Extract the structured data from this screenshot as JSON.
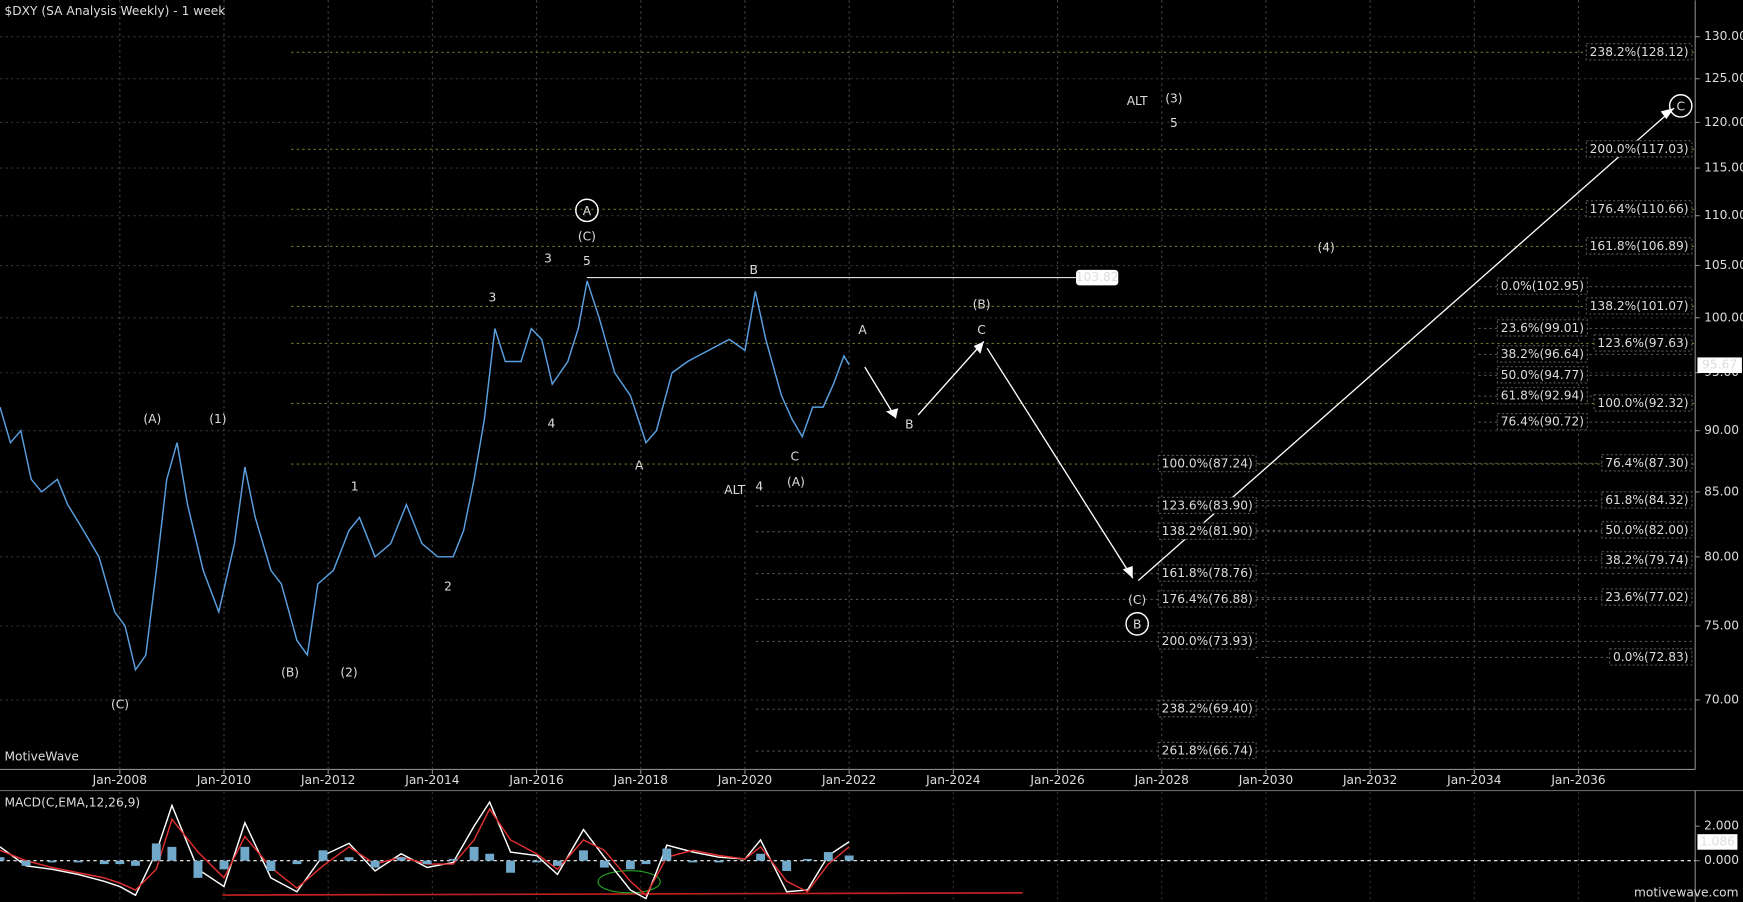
{
  "chart_data": [
    {
      "type": "line",
      "title": "$DXY (SA Analysis Weekly) - 1 week",
      "watermark": "MotiveWave",
      "log_scale": true,
      "grid": true,
      "xlim": [
        2005.7,
        2038.24
      ],
      "xticks": [
        {
          "value": 2008,
          "label": "Jan-2008"
        },
        {
          "value": 2010,
          "label": "Jan-2010"
        },
        {
          "value": 2012,
          "label": "Jan-2012"
        },
        {
          "value": 2014,
          "label": "Jan-2014"
        },
        {
          "value": 2016,
          "label": "Jan-2016"
        },
        {
          "value": 2018,
          "label": "Jan-2018"
        },
        {
          "value": 2020,
          "label": "Jan-2020"
        },
        {
          "value": 2022,
          "label": "Jan-2022"
        },
        {
          "value": 2024,
          "label": "Jan-2024"
        },
        {
          "value": 2026,
          "label": "Jan-2026"
        },
        {
          "value": 2028,
          "label": "Jan-2028"
        },
        {
          "value": 2030,
          "label": "Jan-2030"
        },
        {
          "value": 2032,
          "label": "Jan-2032"
        },
        {
          "value": 2034,
          "label": "Jan-2034"
        },
        {
          "value": 2036,
          "label": "Jan-2036"
        }
      ],
      "ylim": [
        65.6,
        134.5
      ],
      "yticks": [
        {
          "value": 70,
          "label": "70.00"
        },
        {
          "value": 75,
          "label": "75.00"
        },
        {
          "value": 80,
          "label": "80.00"
        },
        {
          "value": 85,
          "label": "85.00"
        },
        {
          "value": 90,
          "label": "90.00"
        },
        {
          "value": 95,
          "label": "95.00"
        },
        {
          "value": 100,
          "label": "100.00"
        },
        {
          "value": 105,
          "label": "105.00"
        },
        {
          "value": 110,
          "label": "110.00"
        },
        {
          "value": 115,
          "label": "115.00"
        },
        {
          "value": 120,
          "label": "120.00"
        },
        {
          "value": 125,
          "label": "125.00"
        },
        {
          "value": 130,
          "label": "130.00"
        }
      ],
      "x": [
        2005.7,
        2005.9,
        2006.1,
        2006.3,
        2006.5,
        2006.8,
        2007.0,
        2007.3,
        2007.6,
        2007.9,
        2008.1,
        2008.3,
        2008.5,
        2008.7,
        2008.9,
        2009.1,
        2009.3,
        2009.6,
        2009.9,
        2010.2,
        2010.4,
        2010.6,
        2010.9,
        2011.1,
        2011.4,
        2011.6,
        2011.8,
        2012.1,
        2012.4,
        2012.6,
        2012.9,
        2013.2,
        2013.5,
        2013.8,
        2014.1,
        2014.4,
        2014.6,
        2014.8,
        2015.0,
        2015.2,
        2015.4,
        2015.7,
        2015.9,
        2016.1,
        2016.3,
        2016.6,
        2016.8,
        2016.97,
        2017.2,
        2017.5,
        2017.8,
        2018.1,
        2018.3,
        2018.6,
        2018.9,
        2019.3,
        2019.7,
        2020.0,
        2020.2,
        2020.4,
        2020.7,
        2020.9,
        2021.1,
        2021.3,
        2021.5,
        2021.7,
        2021.9,
        2022.0
      ],
      "series": [
        {
          "color": "#5aa0e0",
          "values": [
            92,
            89,
            90,
            86,
            85,
            86,
            84,
            82,
            80,
            76,
            75,
            72,
            73,
            79,
            86,
            89,
            84,
            79,
            76,
            81,
            87,
            83,
            79,
            78,
            74,
            73,
            78,
            79,
            82,
            83,
            80,
            81,
            84,
            81,
            80,
            80,
            82,
            86,
            91,
            99,
            96,
            96,
            99,
            98,
            94,
            96,
            99,
            103.5,
            100,
            95,
            93,
            89,
            90,
            95,
            96,
            97,
            98,
            97,
            102.5,
            98,
            93,
            91,
            89.5,
            92,
            92,
            94,
            96.5,
            95.7
          ]
        }
      ],
      "price_tag": 95.67,
      "resistance": 103.82,
      "fib_levels": [
        {
          "value": 128.12,
          "label": "238.2%(128.12)"
        },
        {
          "value": 117.03,
          "label": "200.0%(117.03)"
        },
        {
          "value": 110.66,
          "label": "176.4%(110.66)"
        },
        {
          "value": 106.89,
          "label": "161.8%(106.89)"
        },
        {
          "value": 101.07,
          "label": "138.2%(101.07)"
        },
        {
          "value": 97.63,
          "label": "123.6%(97.63)"
        },
        {
          "value": 92.32,
          "label": "100.0%(92.32)"
        },
        {
          "value": 102.95,
          "label": "0.0%(102.95)"
        },
        {
          "value": 99.01,
          "label": "23.6%(99.01)"
        },
        {
          "value": 96.64,
          "label": "38.2%(96.64)"
        },
        {
          "value": 94.77,
          "label": "50.0%(94.77)"
        },
        {
          "value": 92.94,
          "label": "61.8%(92.94)"
        },
        {
          "value": 90.72,
          "label": "76.4%(90.72)"
        },
        {
          "value": 87.24,
          "label": "100.0%(87.24)"
        },
        {
          "value": 83.9,
          "label": "123.6%(83.90)"
        },
        {
          "value": 81.9,
          "label": "138.2%(81.90)"
        },
        {
          "value": 78.76,
          "label": "161.8%(78.76)"
        },
        {
          "value": 76.88,
          "label": "176.4%(76.88)"
        },
        {
          "value": 73.93,
          "label": "200.0%(73.93)"
        },
        {
          "value": 69.4,
          "label": "238.2%(69.40)"
        },
        {
          "value": 66.74,
          "label": "261.8%(66.74)"
        },
        {
          "value": 87.3,
          "label": "76.4%(87.30)"
        },
        {
          "value": 84.32,
          "label": "61.8%(84.32)"
        },
        {
          "value": 82.0,
          "label": "50.0%(82.00)"
        },
        {
          "value": 79.74,
          "label": "38.2%(79.74)"
        },
        {
          "value": 77.02,
          "label": "23.6%(77.02)"
        },
        {
          "value": 72.83,
          "label": "0.0%(72.83)"
        }
      ],
      "annotations": [
        "(C)",
        "(A)",
        "(1)",
        "(B)",
        "(2)",
        "1",
        "2",
        "3",
        "4",
        "3",
        "A",
        "(C)",
        "5",
        "B",
        "A",
        "ALT",
        "4",
        "C",
        "(A)",
        "A",
        "B",
        "(B)",
        "C",
        "(C)",
        "B",
        "C",
        "ALT",
        "(3)",
        "5",
        "(4)"
      ]
    },
    {
      "type": "line",
      "title": "MACD(C,EMA,12,26,9)",
      "xlim": [
        2005.7,
        2038.24
      ],
      "ylim": [
        -2.19,
        4.0
      ],
      "yticks": [
        {
          "value": 2,
          "label": "2.000"
        },
        {
          "value": 0,
          "label": "0.000"
        }
      ],
      "tag": 1.086,
      "x": [
        2005.7,
        2006.2,
        2006.7,
        2007.2,
        2007.7,
        2008.0,
        2008.3,
        2008.7,
        2009.0,
        2009.5,
        2010.0,
        2010.4,
        2010.9,
        2011.4,
        2011.9,
        2012.4,
        2012.9,
        2013.4,
        2013.9,
        2014.4,
        2014.8,
        2015.1,
        2015.5,
        2016.0,
        2016.4,
        2016.9,
        2017.3,
        2017.8,
        2018.1,
        2018.5,
        2019.0,
        2019.5,
        2020.0,
        2020.3,
        2020.8,
        2021.2,
        2021.6,
        2022.0
      ],
      "series": [
        {
          "color": "#ffffff",
          "values": [
            0.8,
            -0.3,
            -0.5,
            -0.8,
            -1.2,
            -1.5,
            -2.0,
            0.5,
            3.2,
            -0.5,
            -1.5,
            2.2,
            -1.0,
            -1.8,
            0.3,
            1.0,
            -0.6,
            0.4,
            -0.4,
            -0.1,
            2.0,
            3.4,
            0.5,
            0.3,
            -0.8,
            1.8,
            0.2,
            -1.7,
            -2.2,
            0.9,
            0.5,
            0.2,
            0.1,
            1.2,
            -1.8,
            -1.7,
            0.3,
            1.1
          ]
        },
        {
          "color": "#e03030",
          "values": [
            0.6,
            0.0,
            -0.4,
            -0.7,
            -1.0,
            -1.3,
            -1.7,
            -0.5,
            2.4,
            0.5,
            -1.0,
            1.4,
            -0.4,
            -1.6,
            -0.3,
            0.8,
            -0.2,
            0.2,
            -0.2,
            -0.2,
            1.2,
            3.0,
            1.2,
            0.4,
            -0.5,
            1.2,
            0.6,
            -1.2,
            -2.0,
            0.2,
            0.6,
            0.3,
            0.1,
            0.8,
            -1.2,
            -1.8,
            -0.2,
            0.8
          ]
        },
        {
          "type": "bar",
          "color": "#6fa8c8",
          "values": [
            0.2,
            -0.3,
            -0.1,
            -0.1,
            -0.2,
            -0.2,
            -0.3,
            1.0,
            0.8,
            -1.0,
            -0.5,
            0.8,
            -0.6,
            -0.2,
            0.6,
            0.2,
            -0.4,
            0.2,
            -0.2,
            0.1,
            0.8,
            0.4,
            -0.7,
            -0.1,
            -0.3,
            0.6,
            -0.4,
            -0.5,
            -0.2,
            0.7,
            -0.1,
            -0.1,
            0.0,
            0.4,
            -0.6,
            0.1,
            0.5,
            0.3
          ]
        }
      ]
    }
  ],
  "footer": "motivewave.com"
}
